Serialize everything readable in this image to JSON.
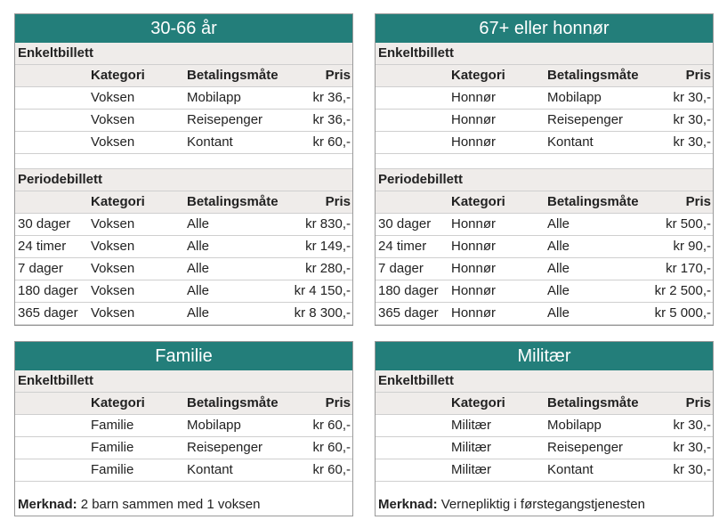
{
  "panels": [
    {
      "title": "30-66 år",
      "sections": [
        {
          "title": "Enkeltbillett",
          "headers": [
            "Kategori",
            "Betalingsmåte",
            "Pris"
          ],
          "rows": [
            [
              "Voksen",
              "Mobilapp",
              "kr 36,-"
            ],
            [
              "Voksen",
              "Reisepenger",
              "kr 36,-"
            ],
            [
              "Voksen",
              "Kontant",
              "kr 60,-"
            ]
          ]
        },
        {
          "title": "Periodebillett",
          "headers": [
            "Kategori",
            "Betalingsmåte",
            "Pris"
          ],
          "rows": [
            [
              "30 dager",
              "Voksen",
              "Alle",
              "kr 830,-"
            ],
            [
              "24 timer",
              "Voksen",
              "Alle",
              "kr 149,-"
            ],
            [
              "7 dager",
              "Voksen",
              "Alle",
              "kr 280,-"
            ],
            [
              "180 dager",
              "Voksen",
              "Alle",
              "kr 4 150,-"
            ],
            [
              "365 dager",
              "Voksen",
              "Alle",
              "kr 8 300,-"
            ]
          ]
        }
      ]
    },
    {
      "title": "67+ eller honnør",
      "sections": [
        {
          "title": "Enkeltbillett",
          "headers": [
            "Kategori",
            "Betalingsmåte",
            "Pris"
          ],
          "rows": [
            [
              "Honnør",
              "Mobilapp",
              "kr 30,-"
            ],
            [
              "Honnør",
              "Reisepenger",
              "kr 30,-"
            ],
            [
              "Honnør",
              "Kontant",
              "kr 30,-"
            ]
          ]
        },
        {
          "title": "Periodebillett",
          "headers": [
            "Kategori",
            "Betalingsmåte",
            "Pris"
          ],
          "rows": [
            [
              "30 dager",
              "Honnør",
              "Alle",
              "kr 500,-"
            ],
            [
              "24 timer",
              "Honnør",
              "Alle",
              "kr 90,-"
            ],
            [
              "7 dager",
              "Honnør",
              "Alle",
              "kr 170,-"
            ],
            [
              "180 dager",
              "Honnør",
              "Alle",
              "kr 2 500,-"
            ],
            [
              "365 dager",
              "Honnør",
              "Alle",
              "kr 5 000,-"
            ]
          ]
        }
      ]
    },
    {
      "title": "Familie",
      "sections": [
        {
          "title": "Enkeltbillett",
          "headers": [
            "Kategori",
            "Betalingsmåte",
            "Pris"
          ],
          "rows": [
            [
              "Familie",
              "Mobilapp",
              "kr 60,-"
            ],
            [
              "Familie",
              "Reisepenger",
              "kr 60,-"
            ],
            [
              "Familie",
              "Kontant",
              "kr 60,-"
            ]
          ]
        }
      ],
      "note": {
        "label": "Merknad:",
        "text": "2 barn sammen med 1 voksen"
      }
    },
    {
      "title": "Militær",
      "sections": [
        {
          "title": "Enkeltbillett",
          "headers": [
            "Kategori",
            "Betalingsmåte",
            "Pris"
          ],
          "rows": [
            [
              "Militær",
              "Mobilapp",
              "kr 30,-"
            ],
            [
              "Militær",
              "Reisepenger",
              "kr 30,-"
            ],
            [
              "Militær",
              "Kontant",
              "kr 30,-"
            ]
          ]
        }
      ],
      "note": {
        "label": "Merknad:",
        "text": "Vernepliktig i førstegangstjenesten"
      }
    }
  ]
}
